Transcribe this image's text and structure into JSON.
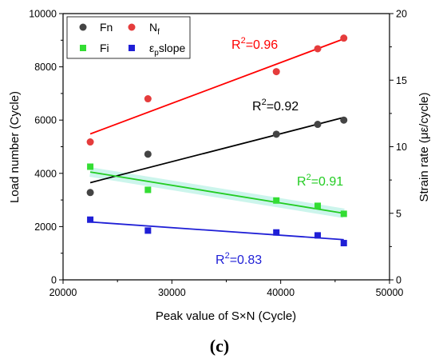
{
  "chart_data": {
    "type": "scatter",
    "panel_label": "(c)",
    "xlabel": "Peak value of S×N (Cycle)",
    "ylabel_left": "Load number (Cycle)",
    "ylabel_right": "Strain rate (με/cycle)",
    "xlim": [
      20000,
      50000
    ],
    "ylim_left": [
      0,
      10000
    ],
    "ylim_right": [
      0,
      20
    ],
    "x_ticks": [
      "20000",
      "30000",
      "40000",
      "50000"
    ],
    "y_left_ticks": [
      "0",
      "2000",
      "4000",
      "6000",
      "8000",
      "10000"
    ],
    "y_right_ticks": [
      "0",
      "5",
      "10",
      "15",
      "20"
    ],
    "legend_placement": "top-left",
    "series": [
      {
        "name": "Fn",
        "marker": "circle",
        "color": "#444444",
        "axis": "left",
        "x": [
          22500,
          27800,
          39600,
          43400,
          45800
        ],
        "y": [
          3280,
          4720,
          5470,
          5840,
          6000
        ],
        "fit": [
          [
            22500,
            3650
          ],
          [
            45800,
            6100
          ]
        ],
        "r2_base": "R",
        "r2_sup": "2",
        "r2_value": "=0.92",
        "r2_color": "#000000"
      },
      {
        "name": "N",
        "name_sub": "f",
        "marker": "circle",
        "color": "#e53c3c",
        "axis": "left",
        "x": [
          22500,
          27800,
          39600,
          43400,
          45800
        ],
        "y": [
          5180,
          6800,
          7820,
          8680,
          9080
        ],
        "fit": [
          [
            22500,
            5480
          ],
          [
            45800,
            9050
          ]
        ],
        "r2_base": "R",
        "r2_sup": "2",
        "r2_value": "=0.96",
        "r2_color": "#ff0000"
      },
      {
        "name": "Fi",
        "marker": "square",
        "color": "#33dd33",
        "axis": "left",
        "x": [
          22500,
          27800,
          39600,
          43400,
          45800
        ],
        "y": [
          4250,
          3380,
          2980,
          2780,
          2480
        ],
        "fit": [
          [
            22500,
            4050
          ],
          [
            45800,
            2500
          ]
        ],
        "r2_base": "R",
        "r2_sup": "2",
        "r2_value": "=0.91",
        "r2_color": "#22cc22"
      },
      {
        "name": "ε",
        "name_sub": "p",
        "name_suffix": "slope",
        "marker": "square",
        "color": "#1f1fd6",
        "axis": "right",
        "x": [
          22500,
          27800,
          39600,
          43400,
          45800
        ],
        "y": [
          4.52,
          3.7,
          3.56,
          3.34,
          2.76
        ],
        "fit": [
          [
            22500,
            4.35
          ],
          [
            45800,
            3.02
          ]
        ],
        "r2_base": "R",
        "r2_sup": "2",
        "r2_value": "=0.83",
        "r2_color": "#1f1fd6"
      }
    ]
  }
}
